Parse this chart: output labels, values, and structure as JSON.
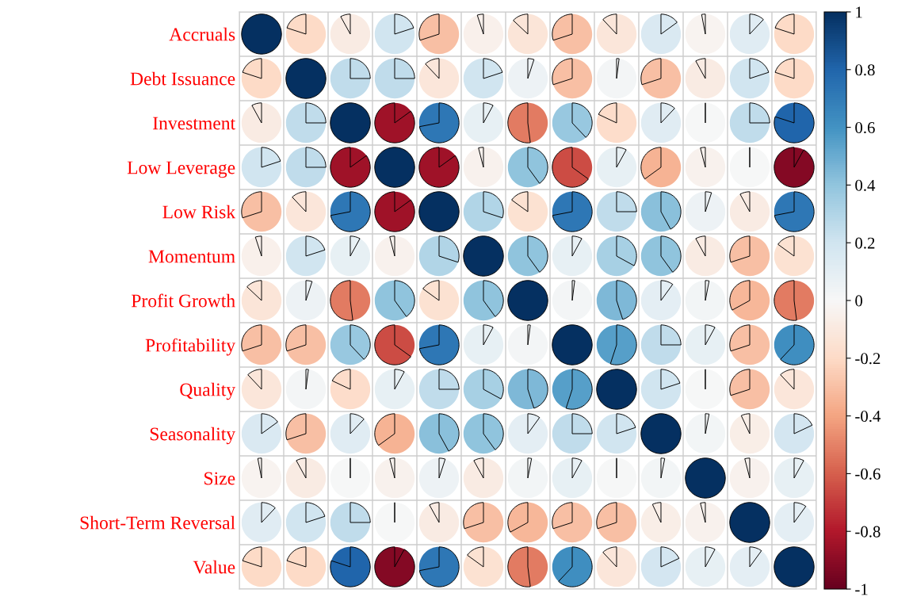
{
  "chart_data": {
    "type": "heatmap",
    "categories": [
      null,
      null,
      null,
      null,
      null,
      null,
      null,
      null,
      null,
      null,
      null,
      null,
      null
    ],
    "y_categories": [
      "Accruals",
      "Debt Issuance",
      "Investment",
      "Low Leverage",
      "Low Risk",
      "Momentum",
      "Profit Growth",
      "Profitability",
      "Quality",
      "Seasonality",
      "Size",
      "Short-Term Reversal",
      "Value"
    ],
    "cells": [
      [
        1,
        -0.2,
        -0.08,
        0.2,
        -0.3,
        -0.05,
        -0.13,
        -0.3,
        -0.12,
        0.15,
        -0.03,
        0.12,
        -0.2
      ],
      [
        -0.2,
        1,
        0.25,
        0.25,
        -0.12,
        0.2,
        0.05,
        -0.3,
        0.02,
        -0.3,
        -0.08,
        0.2,
        -0.2
      ],
      [
        -0.08,
        0.25,
        1,
        -0.85,
        0.72,
        0.08,
        -0.52,
        0.38,
        -0.18,
        0.12,
        0,
        0.25,
        0.8
      ],
      [
        0.2,
        0.25,
        -0.85,
        1,
        -0.85,
        -0.04,
        0.4,
        -0.65,
        0.08,
        -0.35,
        -0.04,
        0,
        -0.92
      ],
      [
        -0.3,
        -0.12,
        0.72,
        -0.85,
        1,
        0.3,
        -0.15,
        0.72,
        0.25,
        0.42,
        0.05,
        -0.08,
        0.72
      ],
      [
        -0.05,
        0.2,
        0.08,
        -0.04,
        0.3,
        1,
        0.4,
        0.08,
        0.33,
        0.4,
        -0.08,
        -0.3,
        -0.15
      ],
      [
        -0.13,
        0.05,
        -0.52,
        0.4,
        -0.15,
        0.4,
        1,
        0.02,
        0.45,
        0.1,
        0.03,
        -0.33,
        -0.52
      ],
      [
        -0.3,
        -0.3,
        0.38,
        -0.65,
        0.72,
        0.08,
        0.02,
        1,
        0.55,
        0.25,
        0.08,
        -0.3,
        0.62
      ],
      [
        -0.12,
        0.02,
        -0.18,
        0.08,
        0.25,
        0.33,
        0.45,
        0.55,
        1,
        0.2,
        0,
        -0.3,
        -0.12
      ],
      [
        0.15,
        -0.3,
        0.12,
        -0.35,
        0.42,
        0.4,
        0.1,
        0.25,
        0.2,
        1,
        0.03,
        -0.07,
        0.18
      ],
      [
        -0.03,
        -0.08,
        0,
        -0.04,
        0.05,
        -0.08,
        0.03,
        0.08,
        0,
        0.03,
        1,
        -0.04,
        0.08
      ],
      [
        0.12,
        0.2,
        0.25,
        0,
        -0.08,
        -0.3,
        -0.33,
        -0.3,
        -0.3,
        -0.07,
        -0.04,
        1,
        0.1
      ],
      [
        -0.2,
        -0.2,
        0.8,
        -0.92,
        0.72,
        -0.15,
        -0.52,
        0.62,
        -0.12,
        0.18,
        0.08,
        0.1,
        1
      ]
    ],
    "clim": [
      -1,
      1
    ],
    "cticks": [
      {
        "value": -1,
        "label": "-1"
      },
      {
        "value": -0.8,
        "label": "-0.8"
      },
      {
        "value": -0.6,
        "label": "-0.6"
      },
      {
        "value": -0.4,
        "label": "-0.4"
      },
      {
        "value": -0.2,
        "label": "-0.2"
      },
      0,
      {
        "value": 0.2,
        "label": "0.2"
      },
      {
        "value": 0.4,
        "label": "0.4"
      },
      {
        "value": 0.6,
        "label": "0.6"
      },
      {
        "value": 0.8,
        "label": "0.8"
      },
      1
    ],
    "tick_labels": "y",
    "grid": true
  }
}
